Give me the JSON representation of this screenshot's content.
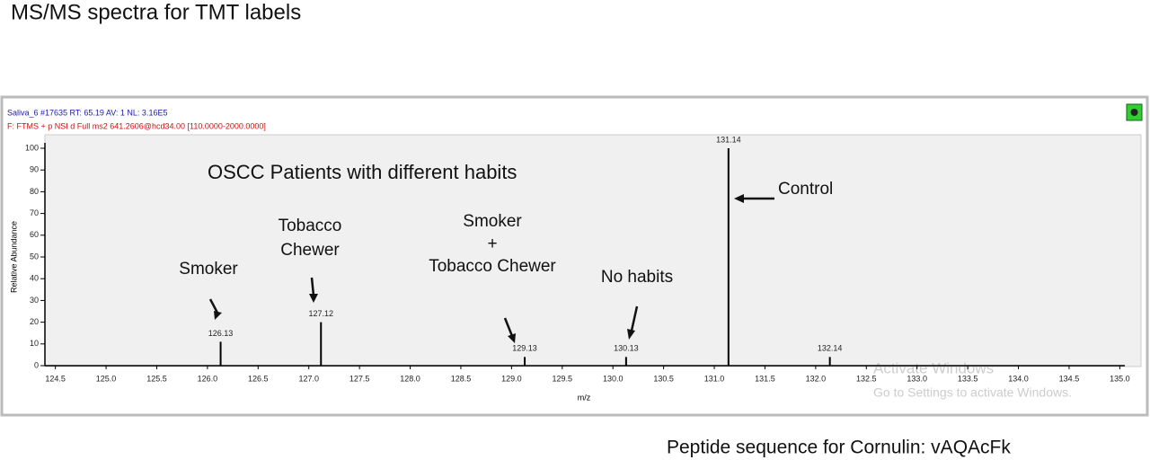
{
  "slide_title": "MS/MS spectra for TMT labels",
  "footer": "Peptide sequence for Cornulin: vAQAcFk",
  "watermark": [
    "Activate Windows",
    "Go to Settings to activate Windows."
  ],
  "chart_data": {
    "type": "stem",
    "header": [
      "Saliva_6 #17635  RT: 65.19  AV: 1  NL: 3.16E5",
      "F: FTMS + p NSI d Full ms2 641.2606@hcd34.00 [110.0000-2000.0000]"
    ],
    "title": "OSCC Patients with different habits",
    "x_label": "m/z",
    "y_label": "Relative Abundance",
    "x": [
      126.13,
      127.12,
      129.13,
      130.13,
      131.14,
      132.14
    ],
    "values": [
      11,
      20,
      4,
      4,
      100,
      4
    ],
    "color": "#000000",
    "xlim": [
      124.45,
      135.05
    ],
    "ylim": [
      0,
      100
    ],
    "xticks": [
      124.5,
      {
        "value": 125,
        "label": "125.0"
      },
      125.5,
      {
        "value": 126,
        "label": "126.0"
      },
      126.5,
      {
        "value": 127,
        "label": "127.0"
      },
      127.5,
      {
        "value": 128,
        "label": "128.0"
      },
      128.5,
      {
        "value": 129,
        "label": "129.0"
      },
      129.5,
      {
        "value": 130,
        "label": "130.0"
      },
      130.5,
      {
        "value": 131,
        "label": "131.0"
      },
      131.5,
      {
        "value": 132,
        "label": "132.0"
      },
      132.5,
      {
        "value": 133,
        "label": "133.0"
      },
      133.5,
      {
        "value": 134,
        "label": "134.0"
      },
      134.5,
      {
        "value": 135,
        "label": "135.0"
      }
    ],
    "yticks": [
      0,
      10,
      20,
      30,
      40,
      50,
      60,
      70,
      80,
      90,
      100
    ],
    "annotations": [
      [
        "Smoker"
      ],
      [
        "Tobacco",
        "Chewer"
      ],
      [
        "Smoker",
        "+",
        "Tobacco Chewer"
      ],
      [
        "No habits"
      ],
      [
        "Control"
      ]
    ]
  }
}
